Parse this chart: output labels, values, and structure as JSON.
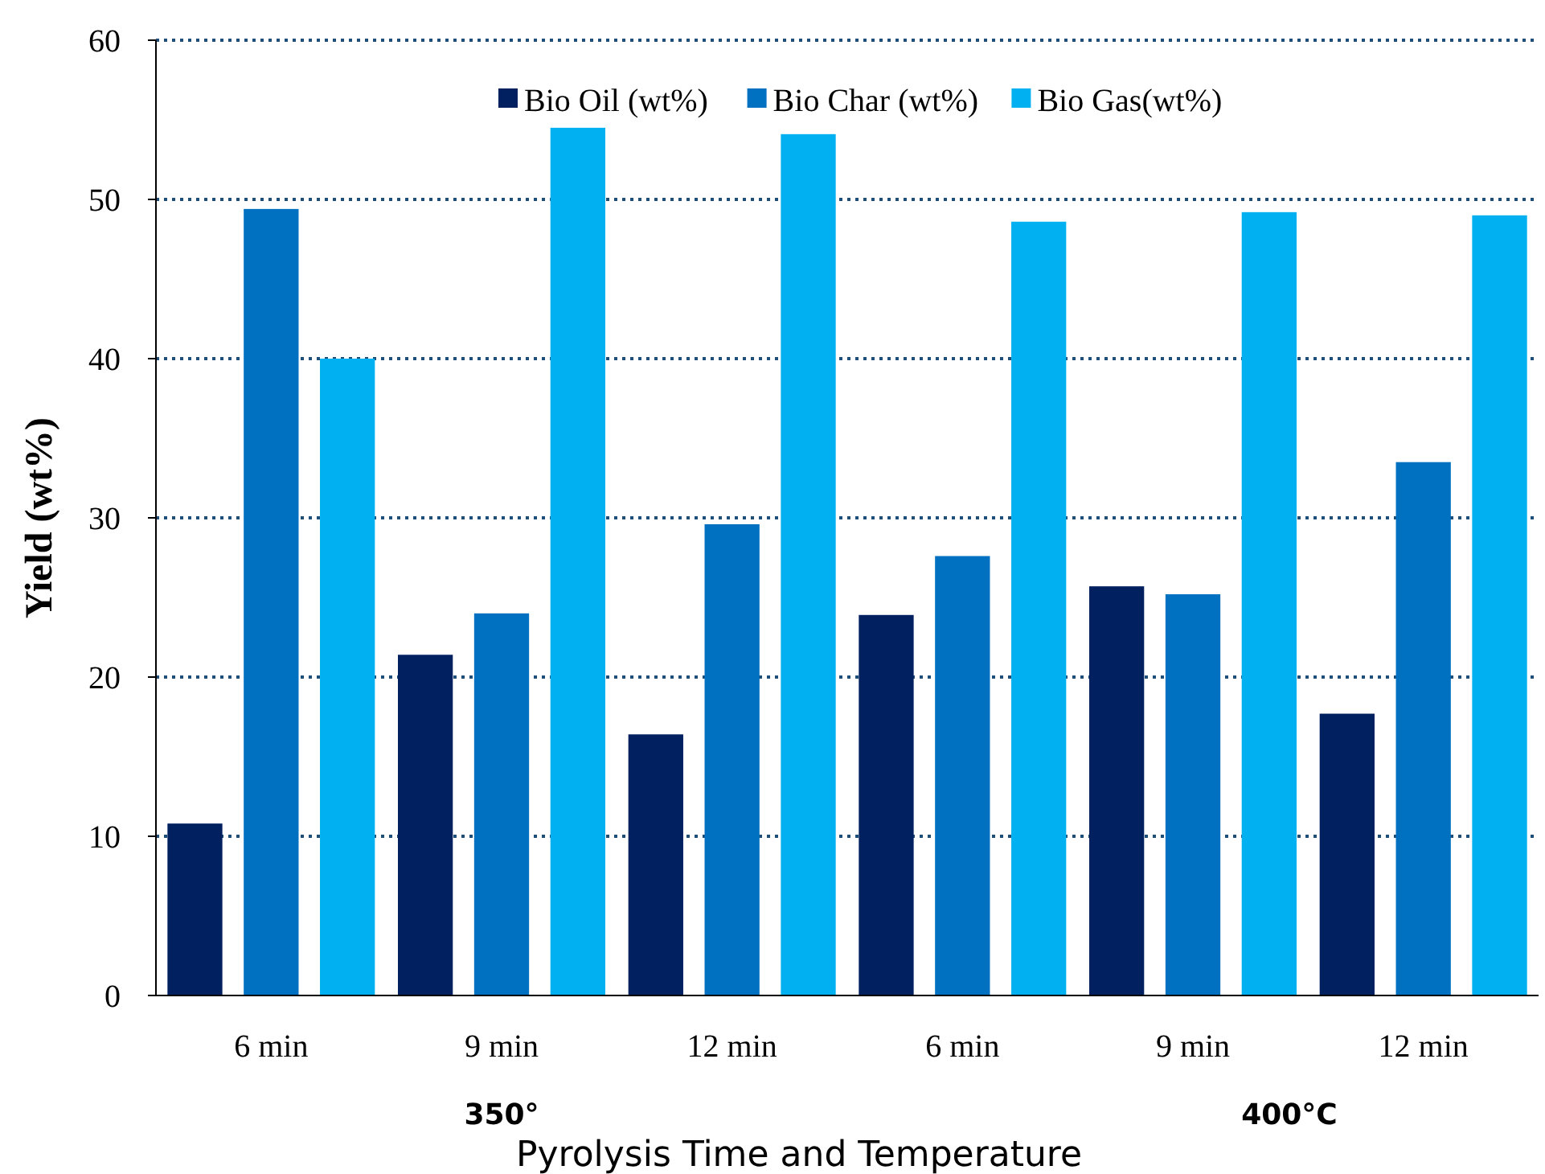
{
  "chart_data": {
    "type": "bar",
    "xlabel": "Pyrolysis Time and Temperature",
    "ylabel": "Yield  (wt%)",
    "categories": [
      "6 min",
      "9 min",
      "12 min",
      "6 min",
      "9 min",
      "12 min"
    ],
    "series": [
      {
        "name": "Bio Oil (wt%)",
        "color": "#002060",
        "values": [
          10.8,
          21.4,
          16.4,
          23.9,
          25.7,
          17.7
        ]
      },
      {
        "name": "Bio Char (wt%)",
        "color": "#0070c0",
        "values": [
          49.4,
          24.0,
          29.6,
          27.6,
          25.2,
          33.5
        ]
      },
      {
        "name": "Bio Gas(wt%)",
        "color": "#00b0f0",
        "values": [
          40.0,
          54.5,
          54.1,
          48.6,
          49.2,
          49.0
        ]
      }
    ],
    "annotations": [
      "350°",
      "400°C"
    ],
    "ylim": [
      0,
      60
    ],
    "yticks": [
      0,
      10,
      20,
      30,
      40,
      50,
      60
    ],
    "grid": "y",
    "legend": "top right"
  }
}
